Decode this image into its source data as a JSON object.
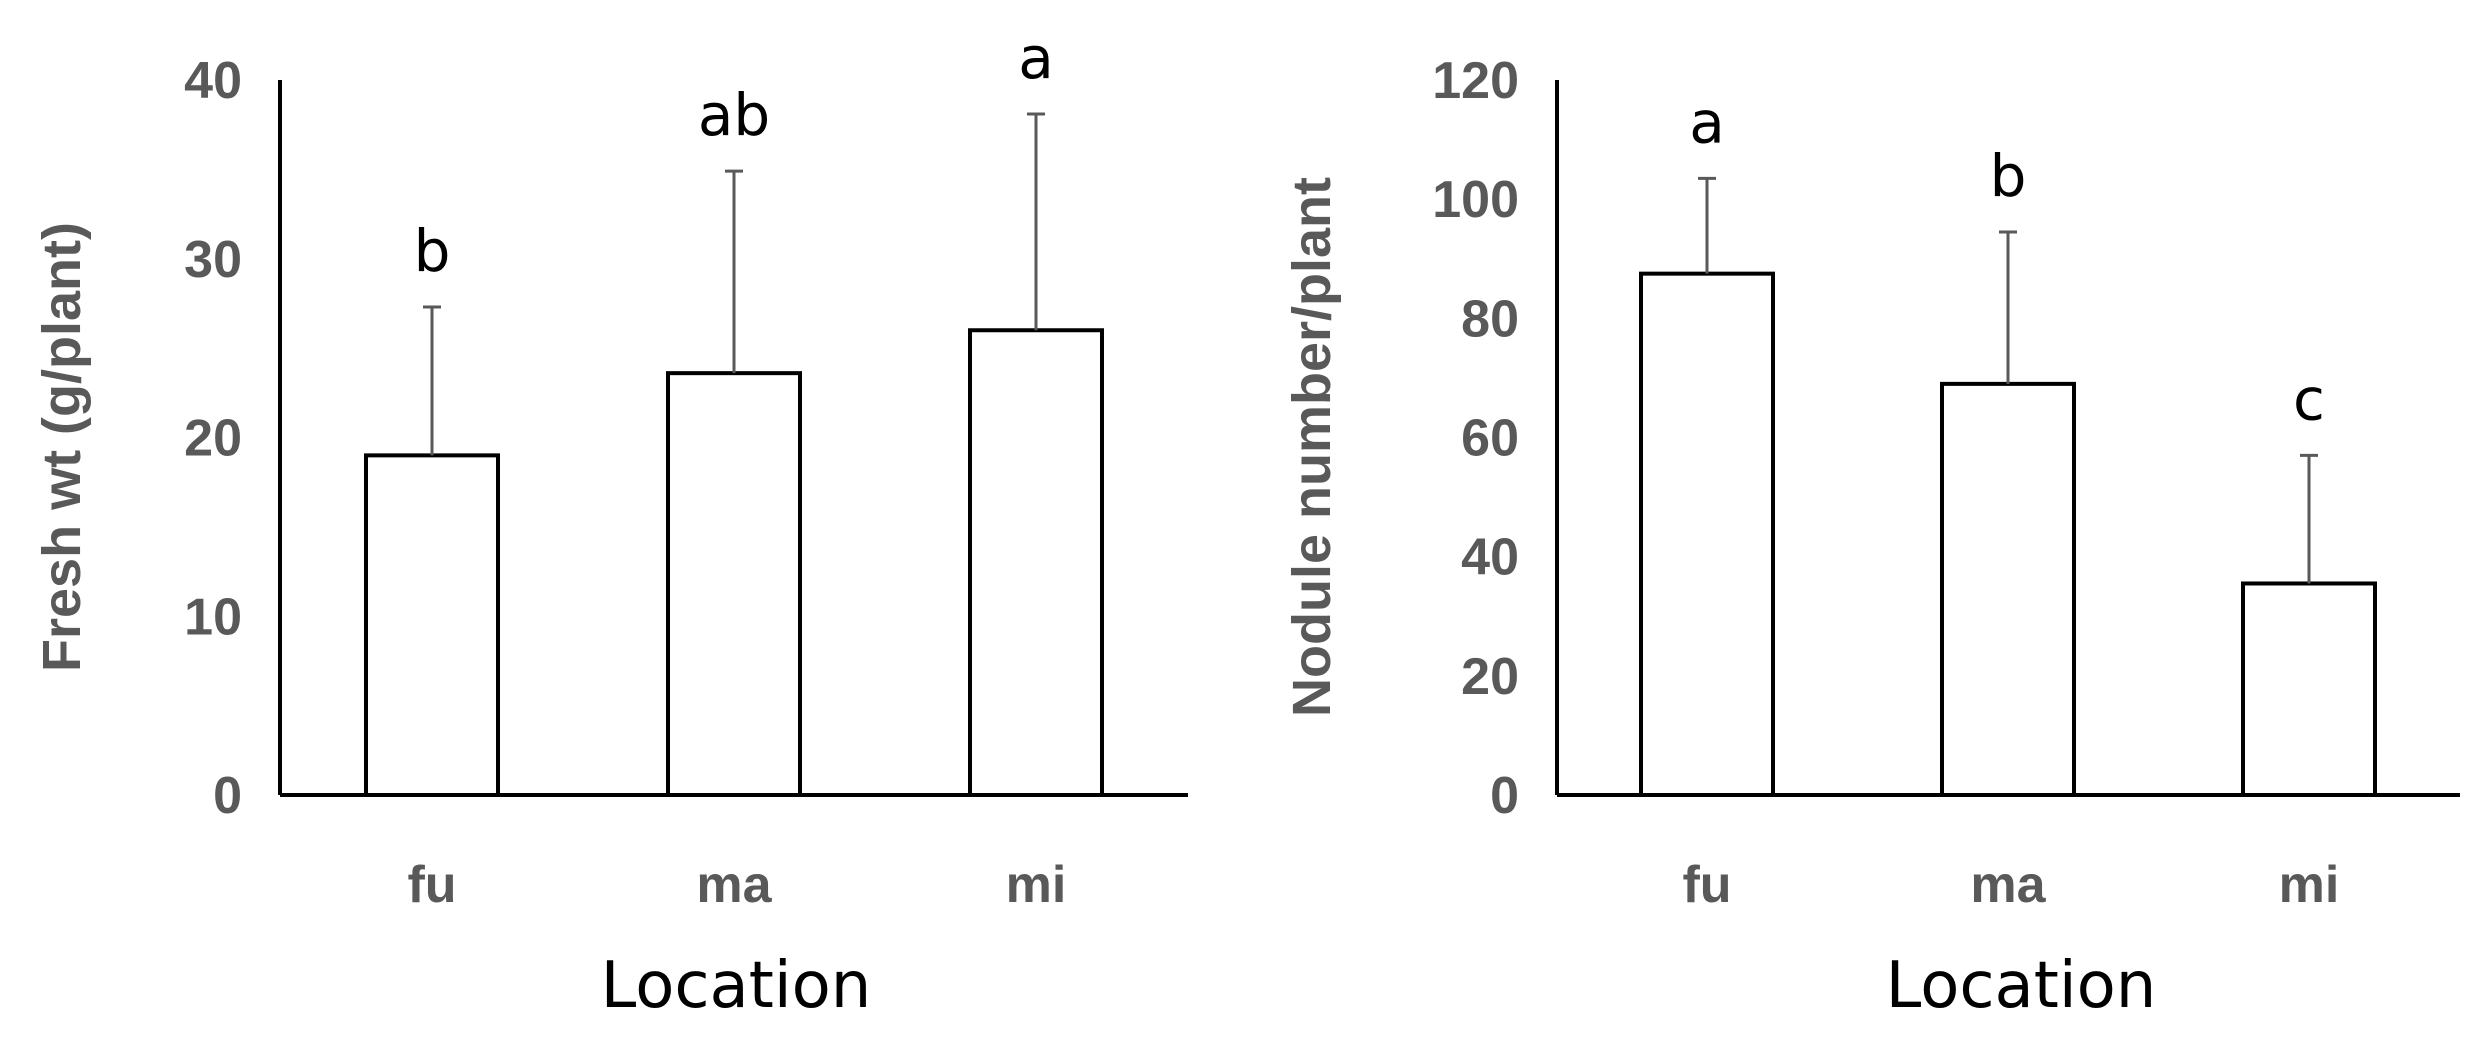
{
  "chart_data": [
    {
      "type": "bar",
      "categories": [
        "fu",
        "ma",
        "mi"
      ],
      "values": [
        19,
        23.6,
        26
      ],
      "errors": [
        8.3,
        11.3,
        12.1
      ],
      "significance": [
        "b",
        "ab",
        "a"
      ],
      "xlabel": "Location",
      "ylabel": "Fresh wt (g/plant)",
      "ylim": [
        0,
        40
      ],
      "yticks": [
        "0",
        "10",
        "20",
        "30",
        "40"
      ]
    },
    {
      "type": "bar",
      "categories": [
        "fu",
        "ma",
        "mi"
      ],
      "values": [
        87.5,
        69,
        35.5
      ],
      "errors": [
        16,
        25.5,
        21.5
      ],
      "significance": [
        "a",
        "b",
        "c"
      ],
      "xlabel": "Location",
      "ylabel": "Nodule number/plant",
      "ylim": [
        0,
        120
      ],
      "yticks": [
        "0",
        "20",
        "40",
        "60",
        "80",
        "100",
        "120"
      ]
    }
  ]
}
